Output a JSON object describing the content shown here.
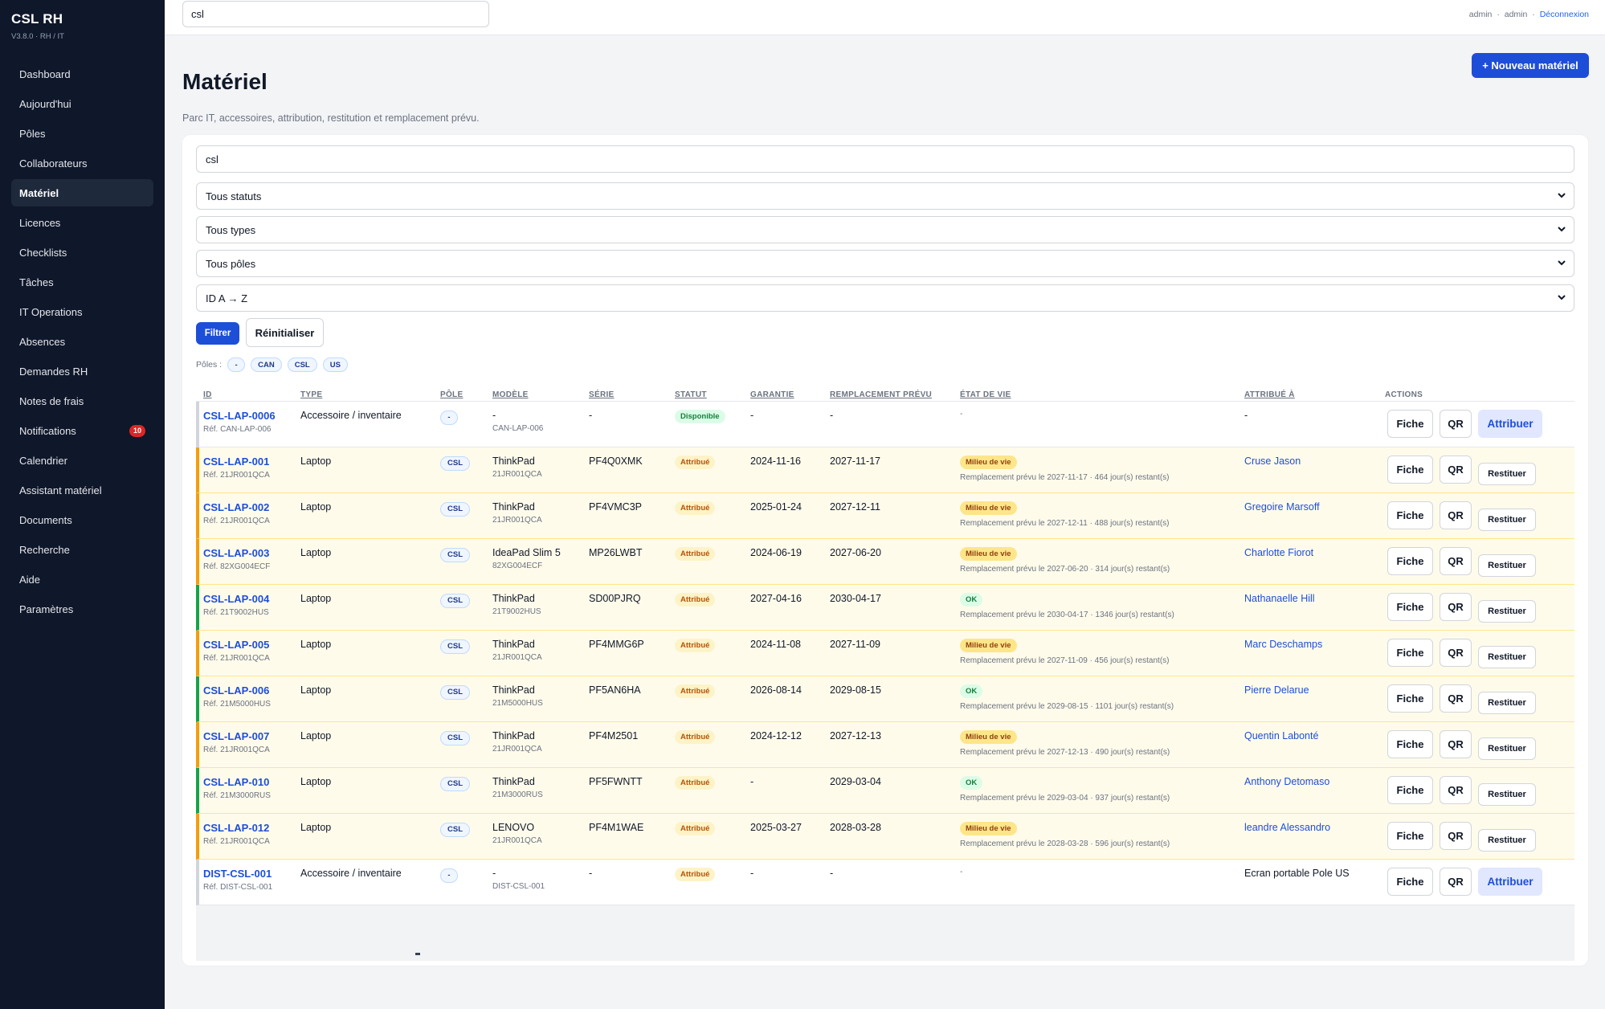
{
  "app": {
    "name": "CSL RH",
    "version": "V3.8.0 · RH / IT"
  },
  "sidebar": {
    "items": [
      {
        "key": "dashboard",
        "label": "Dashboard"
      },
      {
        "key": "aujourdhui",
        "label": "Aujourd'hui"
      },
      {
        "key": "poles",
        "label": "Pôles"
      },
      {
        "key": "collaborateurs",
        "label": "Collaborateurs"
      },
      {
        "key": "materiel",
        "label": "Matériel",
        "active": true
      },
      {
        "key": "licences",
        "label": "Licences"
      },
      {
        "key": "checklists",
        "label": "Checklists"
      },
      {
        "key": "taches",
        "label": "Tâches"
      },
      {
        "key": "it-operations",
        "label": "IT Operations"
      },
      {
        "key": "absences",
        "label": "Absences"
      },
      {
        "key": "demandes-rh",
        "label": "Demandes RH"
      },
      {
        "key": "notes-de-frais",
        "label": "Notes de frais"
      },
      {
        "key": "notifications",
        "label": "Notifications",
        "badge": "10"
      },
      {
        "key": "calendrier",
        "label": "Calendrier"
      },
      {
        "key": "assistant-materiel",
        "label": "Assistant matériel"
      },
      {
        "key": "documents",
        "label": "Documents"
      },
      {
        "key": "recherche",
        "label": "Recherche"
      },
      {
        "key": "aide",
        "label": "Aide"
      },
      {
        "key": "parametres",
        "label": "Paramètres"
      }
    ]
  },
  "topbar": {
    "search_value": "csl",
    "user": "admin",
    "role": "admin",
    "sep": "·",
    "logout": "Déconnexion"
  },
  "header": {
    "title": "Matériel",
    "subtitle": "Parc IT, accessoires, attribution, restitution et remplacement prévu.",
    "new_button": "+ Nouveau matériel"
  },
  "filters": {
    "search_value": "csl",
    "status_select": "Tous statuts",
    "type_select": "Tous types",
    "pole_select": "Tous pôles",
    "sort_select": "ID A → Z",
    "filter_button": "Filtrer",
    "reset_button": "Réinitialiser",
    "poles_label": "Pôles :",
    "pole_chips": [
      "-",
      "CAN",
      "CSL",
      "US"
    ]
  },
  "table": {
    "columns": {
      "id": "ID",
      "type": "TYPE",
      "pole": "PÔLE",
      "modele": "MODÈLE",
      "serie": "SÉRIE",
      "statut": "STATUT",
      "garantie": "GARANTIE",
      "remplacement": "REMPLACEMENT PRÉVU",
      "etat": "ÉTAT DE VIE",
      "attribue": "ATTRIBUÉ À",
      "actions": "ACTIONS"
    },
    "action_labels": {
      "fiche": "Fiche",
      "qr": "QR",
      "restituer": "Restituer",
      "attribuer": "Attribuer"
    },
    "rows": [
      {
        "id": "CSL-LAP-0006",
        "ref": "Réf. CAN-LAP-006",
        "type": "Accessoire / inventaire",
        "pole": "-",
        "modele": "-",
        "modele_ref": "CAN-LAP-006",
        "serie": "-",
        "statut": "Disponible",
        "garantie": "-",
        "remplacement": "-",
        "etat": "",
        "etat_note": "-",
        "attribue": "-",
        "action2": "Attribuer"
      },
      {
        "id": "CSL-LAP-001",
        "ref": "Réf. 21JR001QCA",
        "type": "Laptop",
        "pole": "CSL",
        "modele": "ThinkPad",
        "modele_ref": "21JR001QCA",
        "serie": "PF4Q0XMK",
        "statut": "Attribué",
        "garantie": "2024-11-16",
        "remplacement": "2027-11-17",
        "etat": "Milieu de vie",
        "etat_note": "Remplacement prévu le 2027-11-17 · 464 jour(s) restant(s)",
        "attribue": "Cruse Jason",
        "action2": "Restituer"
      },
      {
        "id": "CSL-LAP-002",
        "ref": "Réf. 21JR001QCA",
        "type": "Laptop",
        "pole": "CSL",
        "modele": "ThinkPad",
        "modele_ref": "21JR001QCA",
        "serie": "PF4VMC3P",
        "statut": "Attribué",
        "garantie": "2025-01-24",
        "remplacement": "2027-12-11",
        "etat": "Milieu de vie",
        "etat_note": "Remplacement prévu le 2027-12-11 · 488 jour(s) restant(s)",
        "attribue": "Gregoire Marsoff",
        "action2": "Restituer"
      },
      {
        "id": "CSL-LAP-003",
        "ref": "Réf. 82XG004ECF",
        "type": "Laptop",
        "pole": "CSL",
        "modele": "IdeaPad Slim 5",
        "modele_ref": "82XG004ECF",
        "serie": "MP26LWBT",
        "statut": "Attribué",
        "garantie": "2024-06-19",
        "remplacement": "2027-06-20",
        "etat": "Milieu de vie",
        "etat_note": "Remplacement prévu le 2027-06-20 · 314 jour(s) restant(s)",
        "attribue": "Charlotte Fiorot",
        "action2": "Restituer"
      },
      {
        "id": "CSL-LAP-004",
        "ref": "Réf. 21T9002HUS",
        "type": "Laptop",
        "pole": "CSL",
        "modele": "ThinkPad",
        "modele_ref": "21T9002HUS",
        "serie": "SD00PJRQ",
        "statut": "Attribué",
        "garantie": "2027-04-16",
        "remplacement": "2030-04-17",
        "etat": "OK",
        "etat_note": "Remplacement prévu le 2030-04-17 · 1346 jour(s) restant(s)",
        "attribue": "Nathanaelle Hill",
        "action2": "Restituer"
      },
      {
        "id": "CSL-LAP-005",
        "ref": "Réf. 21JR001QCA",
        "type": "Laptop",
        "pole": "CSL",
        "modele": "ThinkPad",
        "modele_ref": "21JR001QCA",
        "serie": "PF4MMG6P",
        "statut": "Attribué",
        "garantie": "2024-11-08",
        "remplacement": "2027-11-09",
        "etat": "Milieu de vie",
        "etat_note": "Remplacement prévu le 2027-11-09 · 456 jour(s) restant(s)",
        "attribue": "Marc Deschamps",
        "action2": "Restituer"
      },
      {
        "id": "CSL-LAP-006",
        "ref": "Réf. 21M5000HUS",
        "type": "Laptop",
        "pole": "CSL",
        "modele": "ThinkPad",
        "modele_ref": "21M5000HUS",
        "serie": "PF5AN6HA",
        "statut": "Attribué",
        "garantie": "2026-08-14",
        "remplacement": "2029-08-15",
        "etat": "OK",
        "etat_note": "Remplacement prévu le 2029-08-15 · 1101 jour(s) restant(s)",
        "attribue": "Pierre Delarue",
        "action2": "Restituer"
      },
      {
        "id": "CSL-LAP-007",
        "ref": "Réf. 21JR001QCA",
        "type": "Laptop",
        "pole": "CSL",
        "modele": "ThinkPad",
        "modele_ref": "21JR001QCA",
        "serie": "PF4M2501",
        "statut": "Attribué",
        "garantie": "2024-12-12",
        "remplacement": "2027-12-13",
        "etat": "Milieu de vie",
        "etat_note": "Remplacement prévu le 2027-12-13 · 490 jour(s) restant(s)",
        "attribue": "Quentin Labonté",
        "action2": "Restituer"
      },
      {
        "id": "CSL-LAP-010",
        "ref": "Réf. 21M3000RUS",
        "type": "Laptop",
        "pole": "CSL",
        "modele": "ThinkPad",
        "modele_ref": "21M3000RUS",
        "serie": "PF5FWNTT",
        "statut": "Attribué",
        "garantie": "-",
        "remplacement": "2029-03-04",
        "etat": "OK",
        "etat_note": "Remplacement prévu le 2029-03-04 · 937 jour(s) restant(s)",
        "attribue": "Anthony Detomaso",
        "action2": "Restituer"
      },
      {
        "id": "CSL-LAP-012",
        "ref": "Réf. 21JR001QCA",
        "type": "Laptop",
        "pole": "CSL",
        "modele": "LENOVO",
        "modele_ref": "21JR001QCA",
        "serie": "PF4M1WAE",
        "statut": "Attribué",
        "garantie": "2025-03-27",
        "remplacement": "2028-03-28",
        "etat": "Milieu de vie",
        "etat_note": "Remplacement prévu le 2028-03-28 · 596 jour(s) restant(s)",
        "attribue": "leandre Alessandro",
        "action2": "Restituer"
      },
      {
        "id": "DIST-CSL-001",
        "ref": "Réf. DIST-CSL-001",
        "type": "Accessoire / inventaire",
        "pole": "-",
        "modele": "-",
        "modele_ref": "DIST-CSL-001",
        "serie": "-",
        "statut": "Attribué",
        "garantie": "-",
        "remplacement": "-",
        "etat": "",
        "etat_note": "-",
        "attribue": "Ecran portable Pole US",
        "action2": "Attribuer"
      }
    ]
  },
  "colors": {
    "sidebar_bg": "#0f172a",
    "accent": "#1d4ed8",
    "amber_row": "#fffbeb",
    "badge_red": "#dc2626"
  }
}
